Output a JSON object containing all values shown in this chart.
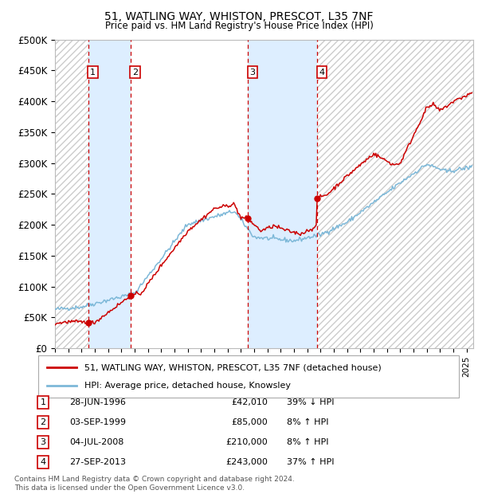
{
  "title1": "51, WATLING WAY, WHISTON, PRESCOT, L35 7NF",
  "title2": "Price paid vs. HM Land Registry's House Price Index (HPI)",
  "ylim": [
    0,
    500000
  ],
  "xlim_start": 1994.0,
  "xlim_end": 2025.5,
  "yticks": [
    0,
    50000,
    100000,
    150000,
    200000,
    250000,
    300000,
    350000,
    400000,
    450000,
    500000
  ],
  "ytick_labels": [
    "£0",
    "£50K",
    "£100K",
    "£150K",
    "£200K",
    "£250K",
    "£300K",
    "£350K",
    "£400K",
    "£450K",
    "£500K"
  ],
  "transactions": [
    {
      "label": "1",
      "date_str": "28-JUN-1996",
      "year": 1996.49,
      "price": 42010,
      "pct": "39%",
      "dir": "↓"
    },
    {
      "label": "2",
      "date_str": "03-SEP-1999",
      "year": 1999.67,
      "price": 85000,
      "pct": "8%",
      "dir": "↑"
    },
    {
      "label": "3",
      "date_str": "04-JUL-2008",
      "year": 2008.51,
      "price": 210000,
      "pct": "8%",
      "dir": "↑"
    },
    {
      "label": "4",
      "date_str": "27-SEP-2013",
      "year": 2013.74,
      "price": 243000,
      "pct": "37%",
      "dir": "↑"
    }
  ],
  "hpi_line_color": "#7db8d8",
  "price_line_color": "#cc0000",
  "dot_color": "#cc0000",
  "vline_color": "#cc0000",
  "shade_color": "#ddeeff",
  "grid_color": "#cccccc",
  "legend_label_price": "51, WATLING WAY, WHISTON, PRESCOT, L35 7NF (detached house)",
  "legend_label_hpi": "HPI: Average price, detached house, Knowsley",
  "footer": "Contains HM Land Registry data © Crown copyright and database right 2024.\nThis data is licensed under the Open Government Licence v3.0.",
  "background_color": "#ffffff"
}
